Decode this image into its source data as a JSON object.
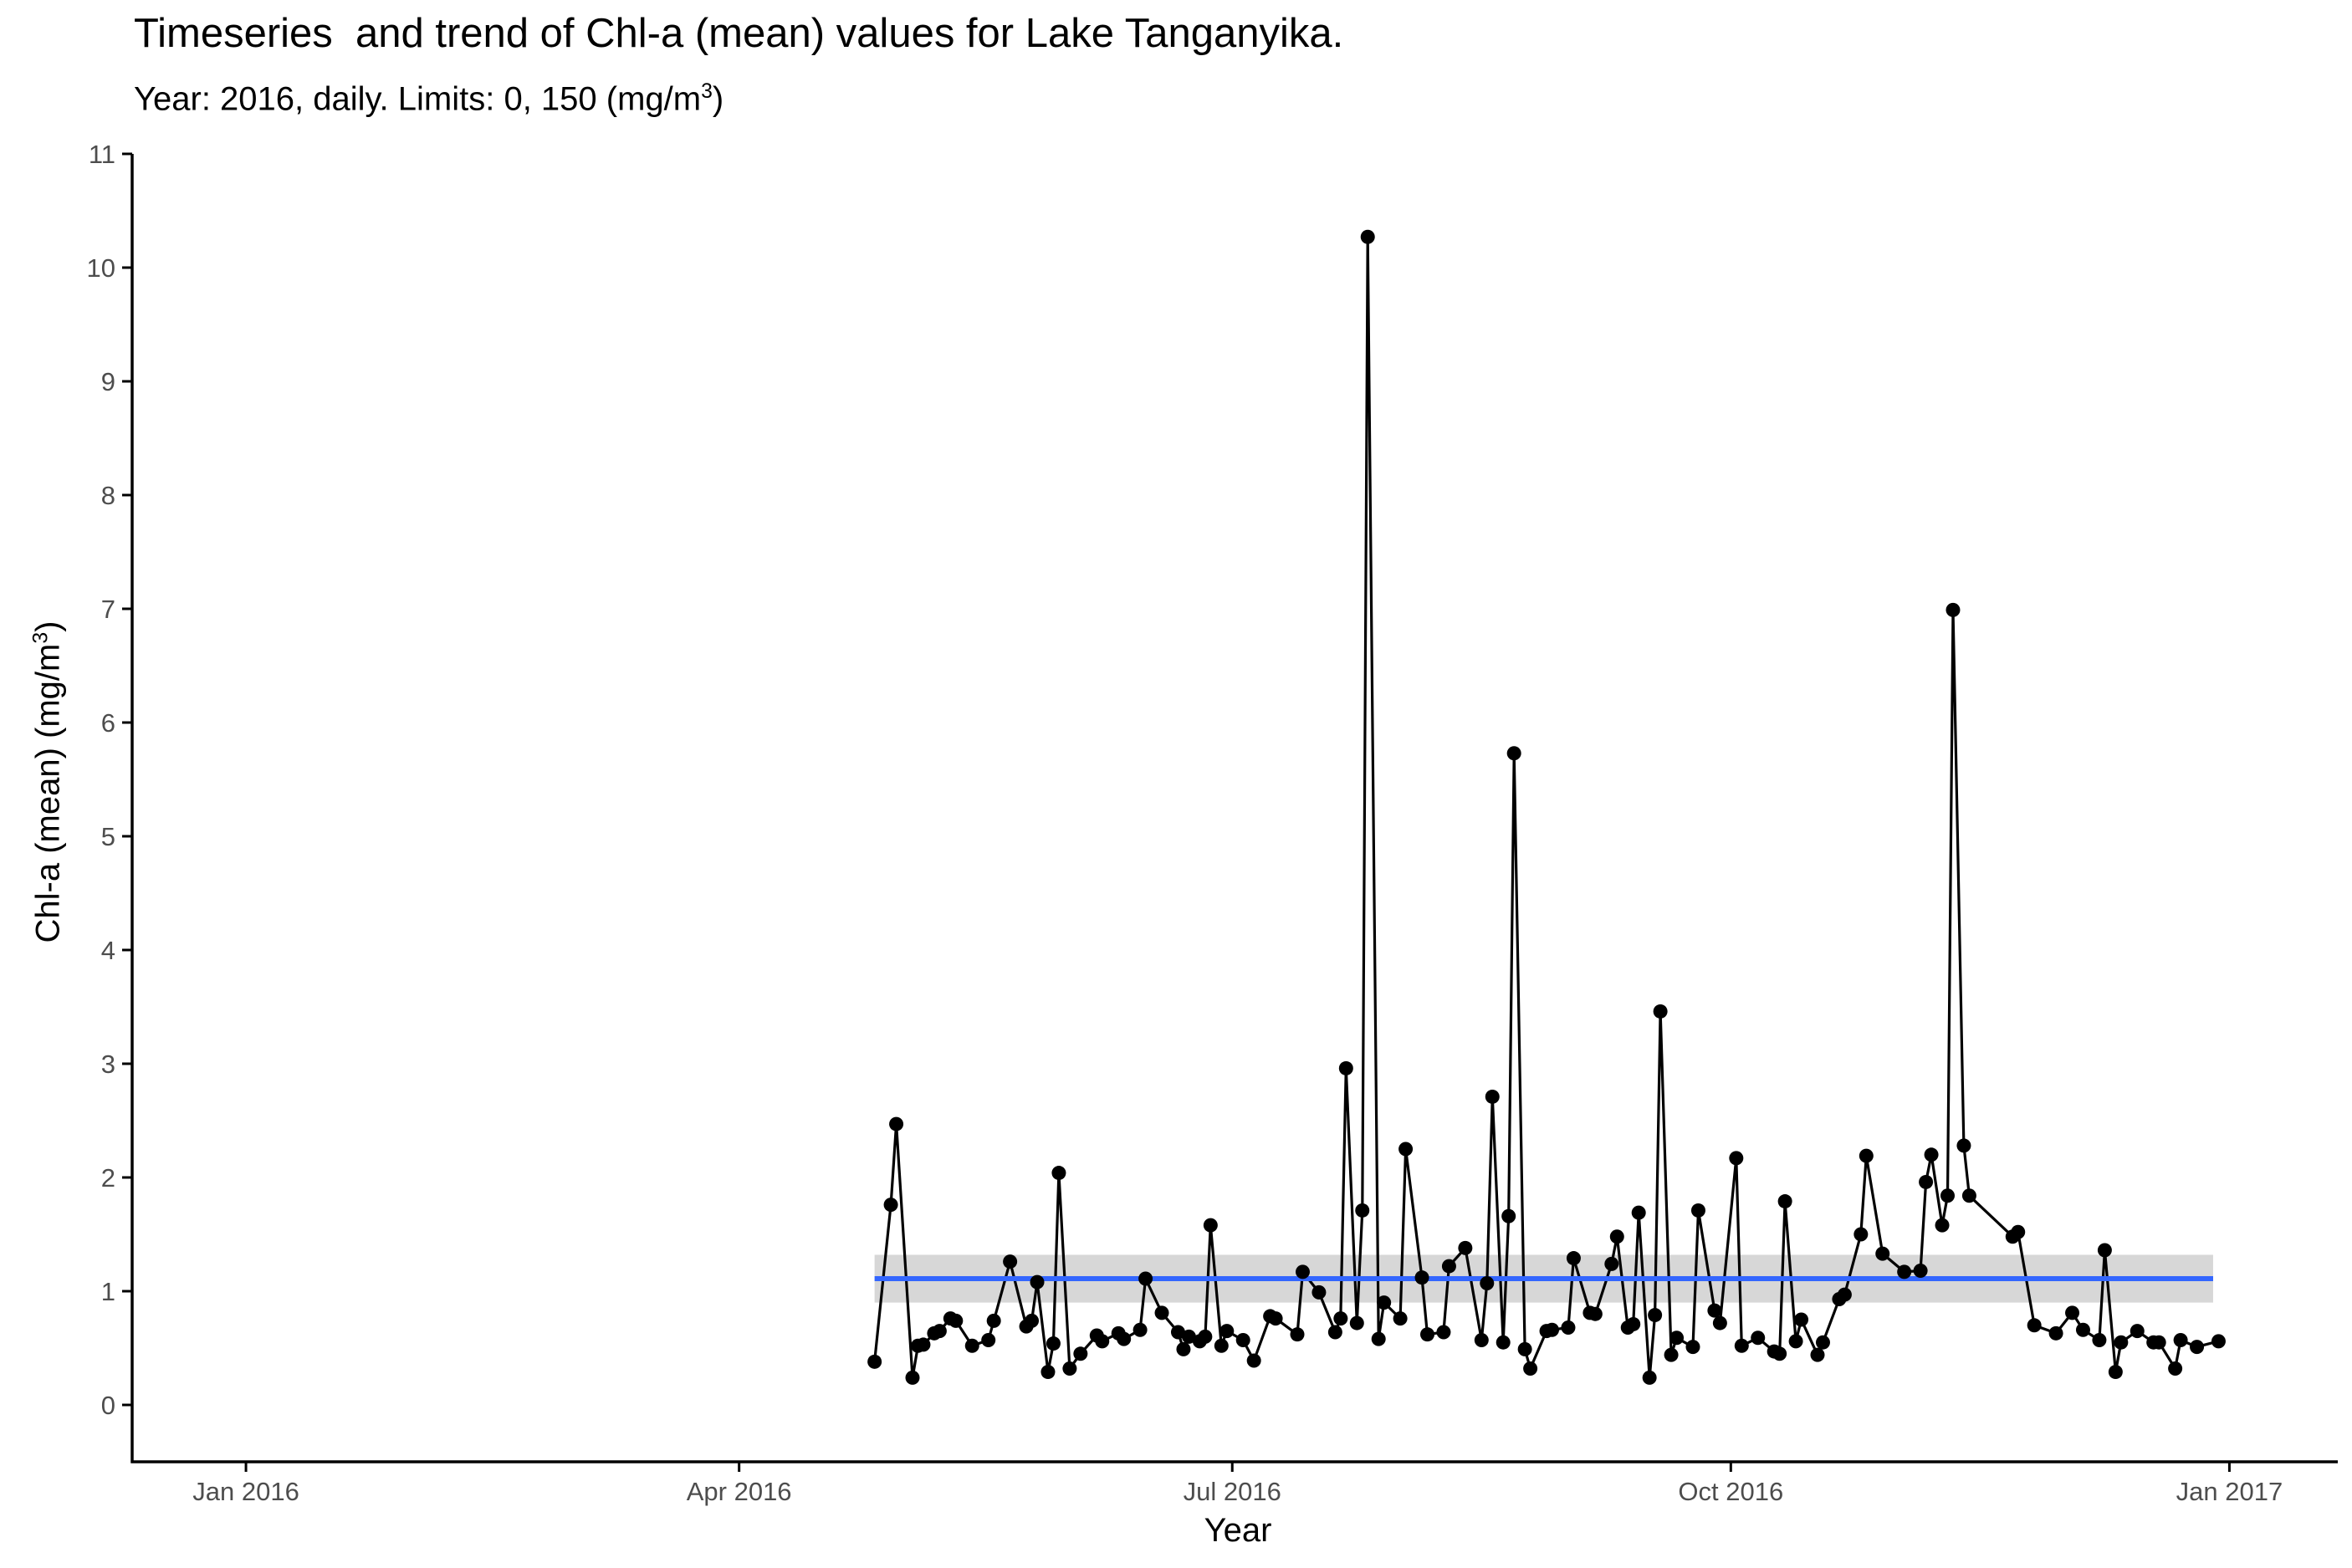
{
  "chart_data": {
    "type": "line",
    "title": "Timeseries  and trend of Chl-a (mean) values for Lake Tanganyika.",
    "subtitle_text": "Year: 2016, daily. Limits: 0, 150 (mg/m",
    "subtitle_sup": "3",
    "subtitle_close": ")",
    "xlabel": "Year",
    "ylabel_text": "Chl-a (mean) (mg/m",
    "ylabel_sup": "3",
    "ylabel_close": ")",
    "xlim": [
      "2015-12-11",
      "2017-01-21"
    ],
    "ylim": [
      -0.5,
      11
    ],
    "x_ticks": [
      {
        "date": "2016-01-01",
        "label": "Jan 2016"
      },
      {
        "date": "2016-04-01",
        "label": "Apr 2016"
      },
      {
        "date": "2016-07-01",
        "label": "Jul 2016"
      },
      {
        "date": "2016-10-01",
        "label": "Oct 2016"
      },
      {
        "date": "2017-01-01",
        "label": "Jan 2017"
      }
    ],
    "y_ticks": [
      0,
      1,
      2,
      3,
      4,
      5,
      6,
      7,
      8,
      9,
      10,
      11
    ],
    "grid": false,
    "colors": {
      "series": "#000000",
      "trend": "#3366FF",
      "band": "#D3D3D3",
      "axis": "#000000",
      "tick_text": "#4D4D4D"
    },
    "trend": {
      "x_start": "2016-04-26",
      "x_end": "2016-12-29",
      "value": 1.11,
      "lower": 0.9,
      "upper": 1.32
    },
    "series": [
      {
        "values": [
          [
            "2016-04-26",
            0.38
          ],
          [
            "2016-04-29",
            1.76
          ],
          [
            "2016-04-30",
            2.47
          ],
          [
            "2016-05-03",
            0.24
          ],
          [
            "2016-05-04",
            0.52
          ],
          [
            "2016-05-05",
            0.53
          ],
          [
            "2016-05-07",
            0.63
          ],
          [
            "2016-05-08",
            0.65
          ],
          [
            "2016-05-10",
            0.76
          ],
          [
            "2016-05-11",
            0.74
          ],
          [
            "2016-05-14",
            0.52
          ],
          [
            "2016-05-17",
            0.57
          ],
          [
            "2016-05-18",
            0.74
          ],
          [
            "2016-05-21",
            1.26
          ],
          [
            "2016-05-24",
            0.69
          ],
          [
            "2016-05-25",
            0.74
          ],
          [
            "2016-05-26",
            1.08
          ],
          [
            "2016-05-28",
            0.29
          ],
          [
            "2016-05-29",
            0.54
          ],
          [
            "2016-05-30",
            2.04
          ],
          [
            "2016-06-01",
            0.32
          ],
          [
            "2016-06-03",
            0.45
          ],
          [
            "2016-06-06",
            0.61
          ],
          [
            "2016-06-07",
            0.56
          ],
          [
            "2016-06-10",
            0.63
          ],
          [
            "2016-06-11",
            0.58
          ],
          [
            "2016-06-14",
            0.66
          ],
          [
            "2016-06-15",
            1.11
          ],
          [
            "2016-06-18",
            0.81
          ],
          [
            "2016-06-21",
            0.64
          ],
          [
            "2016-06-22",
            0.49
          ],
          [
            "2016-06-23",
            0.6
          ],
          [
            "2016-06-25",
            0.56
          ],
          [
            "2016-06-26",
            0.6
          ],
          [
            "2016-06-27",
            1.58
          ],
          [
            "2016-06-29",
            0.52
          ],
          [
            "2016-06-30",
            0.65
          ],
          [
            "2016-07-03",
            0.57
          ],
          [
            "2016-07-05",
            0.39
          ],
          [
            "2016-07-08",
            0.78
          ],
          [
            "2016-07-09",
            0.76
          ],
          [
            "2016-07-13",
            0.62
          ],
          [
            "2016-07-14",
            1.17
          ],
          [
            "2016-07-17",
            0.99
          ],
          [
            "2016-07-20",
            0.64
          ],
          [
            "2016-07-21",
            0.76
          ],
          [
            "2016-07-22",
            2.96
          ],
          [
            "2016-07-24",
            0.72
          ],
          [
            "2016-07-25",
            1.71
          ],
          [
            "2016-07-26",
            10.27
          ],
          [
            "2016-07-28",
            0.58
          ],
          [
            "2016-07-29",
            0.9
          ],
          [
            "2016-08-01",
            0.76
          ],
          [
            "2016-08-02",
            2.25
          ],
          [
            "2016-08-05",
            1.12
          ],
          [
            "2016-08-06",
            0.62
          ],
          [
            "2016-08-09",
            0.64
          ],
          [
            "2016-08-10",
            1.22
          ],
          [
            "2016-08-13",
            1.38
          ],
          [
            "2016-08-16",
            0.57
          ],
          [
            "2016-08-17",
            1.07
          ],
          [
            "2016-08-18",
            2.71
          ],
          [
            "2016-08-20",
            0.55
          ],
          [
            "2016-08-21",
            1.66
          ],
          [
            "2016-08-22",
            5.73
          ],
          [
            "2016-08-24",
            0.49
          ],
          [
            "2016-08-25",
            0.32
          ],
          [
            "2016-08-28",
            0.65
          ],
          [
            "2016-08-29",
            0.66
          ],
          [
            "2016-09-01",
            0.68
          ],
          [
            "2016-09-02",
            1.29
          ],
          [
            "2016-09-05",
            0.81
          ],
          [
            "2016-09-06",
            0.8
          ],
          [
            "2016-09-09",
            1.24
          ],
          [
            "2016-09-10",
            1.48
          ],
          [
            "2016-09-12",
            0.68
          ],
          [
            "2016-09-13",
            0.71
          ],
          [
            "2016-09-14",
            1.69
          ],
          [
            "2016-09-16",
            0.24
          ],
          [
            "2016-09-17",
            0.79
          ],
          [
            "2016-09-18",
            3.46
          ],
          [
            "2016-09-20",
            0.44
          ],
          [
            "2016-09-21",
            0.59
          ],
          [
            "2016-09-24",
            0.51
          ],
          [
            "2016-09-25",
            1.71
          ],
          [
            "2016-09-28",
            0.83
          ],
          [
            "2016-09-29",
            0.72
          ],
          [
            "2016-10-02",
            2.17
          ],
          [
            "2016-10-03",
            0.52
          ],
          [
            "2016-10-06",
            0.59
          ],
          [
            "2016-10-09",
            0.47
          ],
          [
            "2016-10-10",
            0.45
          ],
          [
            "2016-10-11",
            1.79
          ],
          [
            "2016-10-13",
            0.56
          ],
          [
            "2016-10-14",
            0.75
          ],
          [
            "2016-10-17",
            0.44
          ],
          [
            "2016-10-18",
            0.55
          ],
          [
            "2016-10-21",
            0.93
          ],
          [
            "2016-10-22",
            0.97
          ],
          [
            "2016-10-25",
            1.5
          ],
          [
            "2016-10-26",
            2.19
          ],
          [
            "2016-10-29",
            1.33
          ],
          [
            "2016-11-02",
            1.17
          ],
          [
            "2016-11-05",
            1.18
          ],
          [
            "2016-11-06",
            1.96
          ],
          [
            "2016-11-07",
            2.2
          ],
          [
            "2016-11-09",
            1.58
          ],
          [
            "2016-11-10",
            1.84
          ],
          [
            "2016-11-11",
            6.99
          ],
          [
            "2016-11-13",
            2.28
          ],
          [
            "2016-11-14",
            1.84
          ],
          [
            "2016-11-22",
            1.48
          ],
          [
            "2016-11-23",
            1.52
          ],
          [
            "2016-11-26",
            0.7
          ],
          [
            "2016-11-30",
            0.63
          ],
          [
            "2016-12-03",
            0.81
          ],
          [
            "2016-12-05",
            0.66
          ],
          [
            "2016-12-08",
            0.57
          ],
          [
            "2016-12-09",
            1.36
          ],
          [
            "2016-12-11",
            0.29
          ],
          [
            "2016-12-12",
            0.55
          ],
          [
            "2016-12-15",
            0.65
          ],
          [
            "2016-12-18",
            0.55
          ],
          [
            "2016-12-19",
            0.55
          ],
          [
            "2016-12-22",
            0.32
          ],
          [
            "2016-12-23",
            0.57
          ],
          [
            "2016-12-26",
            0.51
          ],
          [
            "2016-12-30",
            0.56
          ]
        ]
      }
    ]
  }
}
